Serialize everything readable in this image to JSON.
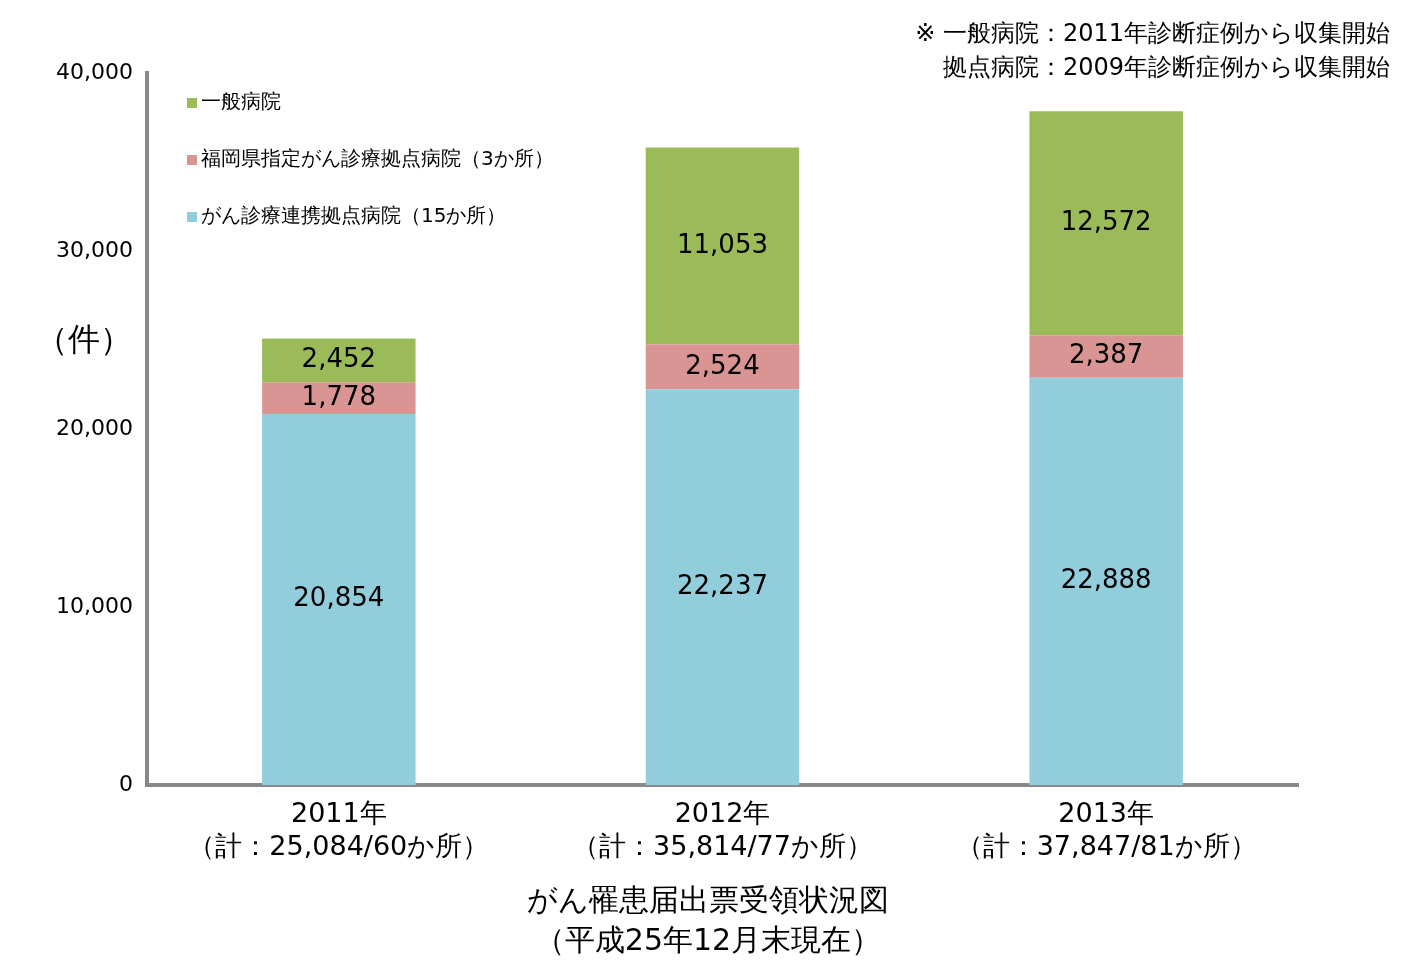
{
  "chart_data": {
    "type": "bar",
    "stacked": true,
    "title": "がん罹患届出票受領状況図",
    "subtitle": "（平成25年12月末現在）",
    "ylabel": "（件）",
    "annotations": [
      "※ 一般病院：2011年診断症例から収集開始",
      "拠点病院：2009年診断症例から収集開始"
    ],
    "categories": [
      "2011年（計：25,084/60か所）",
      "2012年（計：35,814/77か所）",
      "2013年（計：37,847/81か所）"
    ],
    "series": [
      {
        "name": "がん診療連携拠点病院（15か所）",
        "color": "#92cddc",
        "values": [
          20854,
          22237,
          22888
        ],
        "value_labels": [
          "20,854",
          "22,237",
          "22,888"
        ]
      },
      {
        "name": "福岡県指定がん診療拠点病院（3か所）",
        "color": "#d99594",
        "values": [
          1778,
          2524,
          2387
        ],
        "value_labels": [
          "1,778",
          "2,524",
          "2,387"
        ]
      },
      {
        "name": "一般病院",
        "color": "#9bbb59",
        "values": [
          2452,
          11053,
          12572
        ],
        "value_labels": [
          "2,452",
          "11,053",
          "12,572"
        ]
      }
    ],
    "ylim": [
      0,
      40000
    ],
    "yticks": [
      {
        "value": 0,
        "label": "0"
      },
      {
        "value": 10000,
        "label": "10,000"
      },
      {
        "value": 20000,
        "label": "20,000"
      },
      {
        "value": 30000,
        "label": "30,000"
      },
      {
        "value": 40000,
        "label": "40,000"
      }
    ],
    "grid": false,
    "legend": "top left"
  }
}
